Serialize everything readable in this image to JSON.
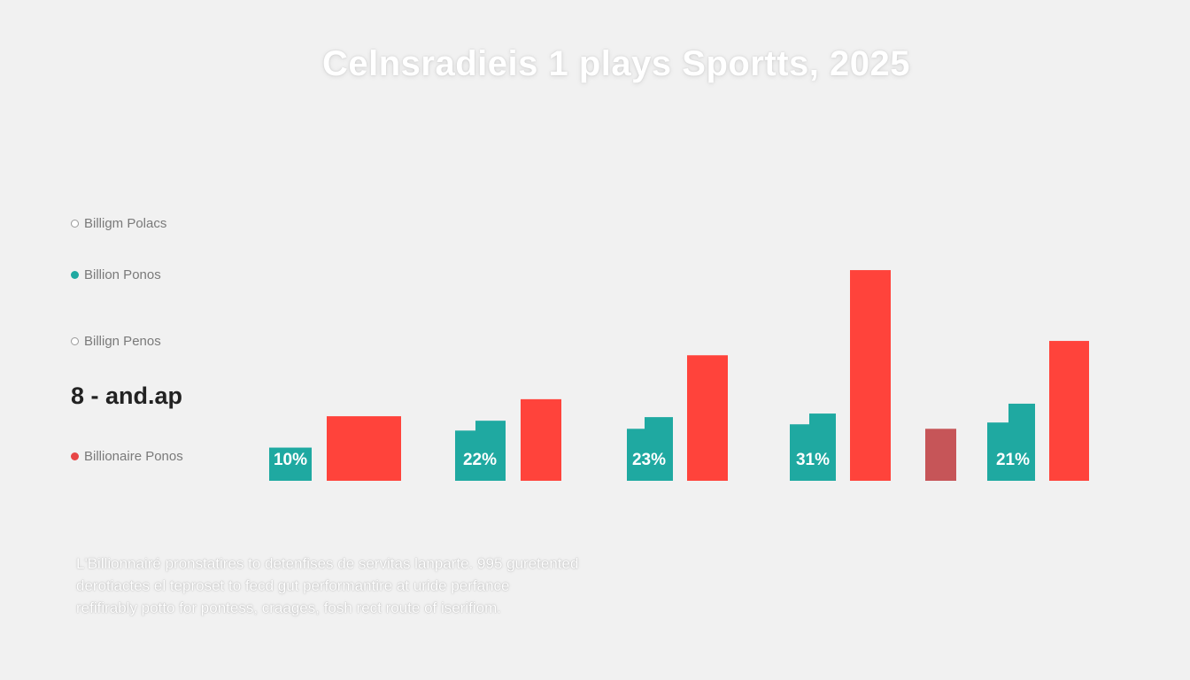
{
  "chart_data": {
    "type": "bar",
    "title": "Celnsradieis 1 plays Sportts, 2025",
    "baseline_y_value": 0,
    "ylim": [
      0,
      240
    ],
    "groups": [
      {
        "label": "10%",
        "values": [
          {
            "series": "teal",
            "value": 37
          },
          {
            "series": "red",
            "value": 72
          },
          {
            "series": "red",
            "value": 72
          }
        ]
      },
      {
        "label": "22%",
        "values": [
          {
            "series": "teal",
            "value": 56
          },
          {
            "series": "teal",
            "value": 67
          },
          {
            "series": "red",
            "value": 91
          }
        ]
      },
      {
        "label": "23%",
        "values": [
          {
            "series": "teal",
            "value": 58
          },
          {
            "series": "teal",
            "value": 71
          },
          {
            "series": "red",
            "value": 140
          }
        ]
      },
      {
        "label": "31%",
        "values": [
          {
            "series": "teal",
            "value": 63
          },
          {
            "series": "teal",
            "value": 75
          },
          {
            "series": "red",
            "value": 235
          }
        ]
      },
      {
        "label": "",
        "values": [
          {
            "series": "darkred",
            "value": 58
          }
        ]
      },
      {
        "label": "21%",
        "values": [
          {
            "series": "teal",
            "value": 65
          },
          {
            "series": "teal",
            "value": 86
          },
          {
            "series": "red",
            "value": 156
          }
        ]
      }
    ],
    "legend": [
      {
        "name": "Billigm Polacs",
        "color": "#ffffff"
      },
      {
        "name": "Billion Ponos",
        "color": "#1fa9a1"
      },
      {
        "name": "Billign Penos",
        "color": "#ffffff"
      },
      {
        "name": "Billionaire Ponos",
        "color": "#e84545"
      }
    ],
    "side_label": "8 - and.ap"
  },
  "colors": {
    "teal": "#1fa9a1",
    "red": "#ff433b",
    "darkred": "#c65558"
  },
  "caption": [
    "L'Billionnairé pronstatires to detenfises de servitas lanparte. 995 guretented",
    "derotiactes el teproset to fecd gut performantire at uride perfance",
    "refifirably potto for pontess, craages, fosh rect route of iserifiom."
  ]
}
